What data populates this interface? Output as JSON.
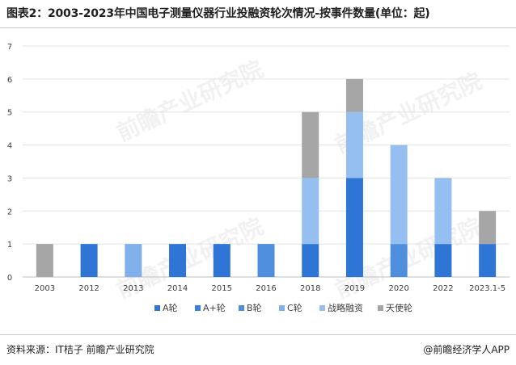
{
  "title": "图表2：2003-2023年中国电子测量仪器行业投融资轮次情况-按事件数量(单位：起)",
  "source": "资料来源：IT桔子 前瞻产业研究院",
  "credit": "@前瞻经济学人APP",
  "watermark": "前瞻产业研究院",
  "colors": {
    "A轮": "#2e75d6",
    "A+轮": "#3a82e0",
    "B轮": "#4f8edc",
    "C轮": "#7fb0ec",
    "战略融资": "#94bff0",
    "天使轮": "#a6a6a6"
  },
  "chart_data": {
    "type": "bar",
    "stacked": true,
    "categories": [
      "2003",
      "2012",
      "2013",
      "2014",
      "2015",
      "2016",
      "2018",
      "2019",
      "2020",
      "2022",
      "2023.1-5"
    ],
    "series": [
      {
        "name": "A轮",
        "values": [
          0,
          1,
          0,
          1,
          1,
          0,
          1,
          3,
          0,
          1,
          1
        ]
      },
      {
        "name": "A+轮",
        "values": [
          0,
          0,
          0,
          0,
          0,
          0,
          0,
          0,
          0,
          0,
          0
        ]
      },
      {
        "name": "B轮",
        "values": [
          0,
          0,
          0,
          0,
          0,
          1,
          0,
          0,
          1,
          0,
          0
        ]
      },
      {
        "name": "C轮",
        "values": [
          0,
          0,
          1,
          0,
          0,
          0,
          0,
          0,
          0,
          0,
          0
        ]
      },
      {
        "name": "战略融资",
        "values": [
          0,
          0,
          0,
          0,
          0,
          0,
          2,
          2,
          3,
          2,
          0
        ]
      },
      {
        "name": "天使轮",
        "values": [
          1,
          0,
          0,
          0,
          0,
          0,
          2,
          1,
          0,
          0,
          1
        ]
      }
    ],
    "yticks": [
      0,
      1,
      2,
      3,
      4,
      5,
      6,
      7
    ],
    "ylim": [
      0,
      7
    ],
    "grid": true,
    "legend_position": "bottom"
  }
}
